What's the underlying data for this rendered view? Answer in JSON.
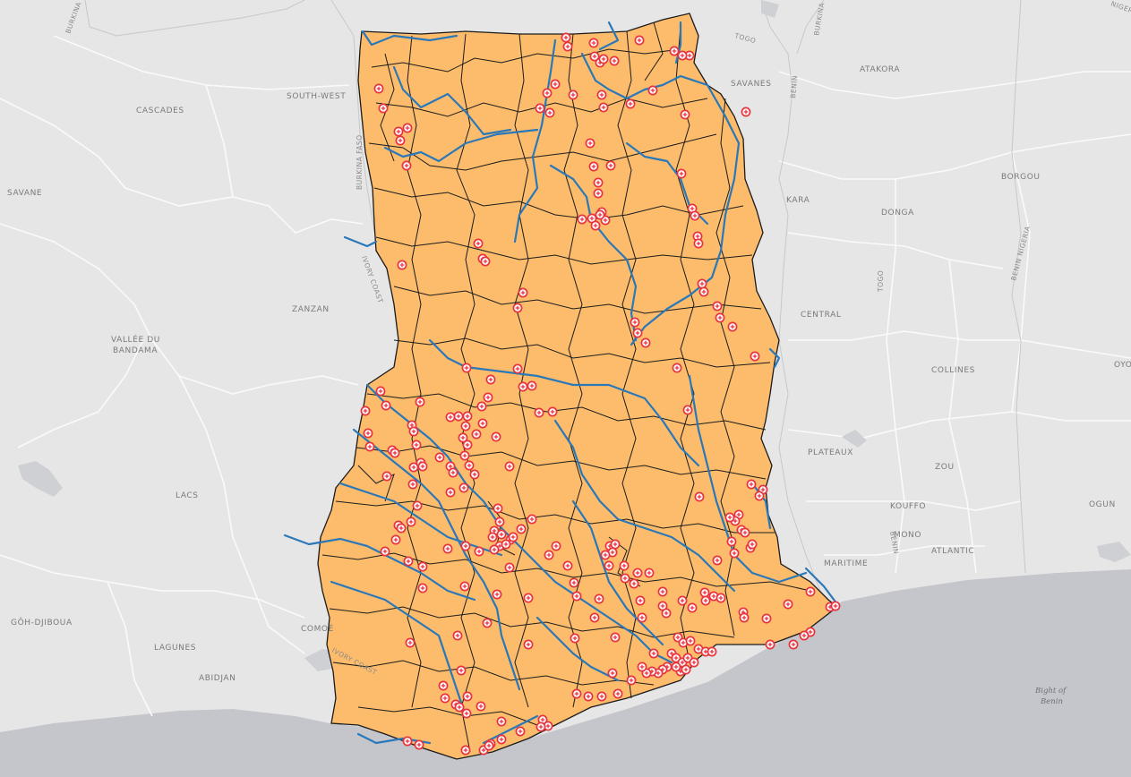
{
  "map": {
    "colors": {
      "land": "#e6e6e6",
      "sea": "#c5c6cb",
      "ghana_fill": "#fcbc6c",
      "district_border": "#1b1b1b",
      "river": "#2b78b8",
      "facility_marker": "#e8343c"
    },
    "icon": "health-facility-cross-icon",
    "labels": {
      "burkina_top": "BURKINA F",
      "south_west": "SOUTH-WEST",
      "cascades": "CASCADES",
      "savane_w": "SAVANE",
      "zanzan": "ZANZAN",
      "vallee_1": "VALLÉE DU",
      "vallee_2": "BANDAMA",
      "lacs": "LACS",
      "goh": "GÔH-DJIBOUA",
      "lagunes": "LAGUNES",
      "abidjan": "ABIDJAN",
      "comoe": "COMOÉ",
      "ivory_coast_s": "IVORY COAST",
      "ivory_coast_n": "IVORY COAST",
      "burkina_faso_vert": "BURKINA FASO",
      "togo": "TOGO",
      "savanes": "SAVANES",
      "kara": "KARA",
      "central": "CENTRAL",
      "plateaux": "PLATEAUX",
      "maritime": "MARITIME",
      "benin_top": "BENIN",
      "burkina_ne": "BURKINA",
      "niger": "NIGER",
      "atakora": "ATAKORA",
      "borgou": "BORGOU",
      "donga": "DONGA",
      "togo_vert": "TOGO",
      "benin_nigeria": "BENIN NIGERIA",
      "collines": "COLLINES",
      "zou": "ZOU",
      "kouffo": "KOUFFO",
      "mono": "MONO",
      "benin_vert": "BENIN",
      "atlantic": "ATLANTIC",
      "ogun": "OGUN",
      "oyo": "OYO",
      "bight_1": "Bight of",
      "bight_2": "Benin"
    }
  }
}
